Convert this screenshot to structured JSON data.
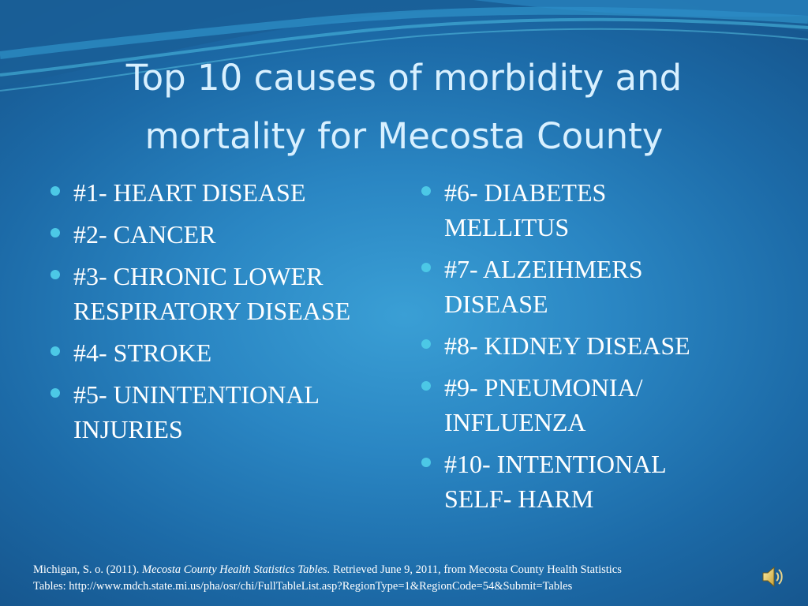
{
  "slide": {
    "title_line1": "Top 10 causes of morbidity and",
    "title_line2": "mortality for Mecosta County",
    "left_items": [
      {
        "line1": "#1- HEART DISEASE",
        "line2": ""
      },
      {
        "line1": "#2- CANCER",
        "line2": ""
      },
      {
        "line1": "#3- CHRONIC LOWER",
        "line2": "RESPIRATORY DISEASE"
      },
      {
        "line1": "#4- STROKE",
        "line2": ""
      },
      {
        "line1": "#5- UNINTENTIONAL",
        "line2": "INJURIES"
      }
    ],
    "right_items": [
      {
        "line1": "#6- DIABETES",
        "line2": "MELLITUS"
      },
      {
        "line1": "#7- ALZEIHMERS",
        "line2": "DISEASE"
      },
      {
        "line1": "#8- KIDNEY DISEASE",
        "line2": ""
      },
      {
        "line1": "#9- PNEUMONIA/",
        "line2": "INFLUENZA"
      },
      {
        "line1": "#10- INTENTIONAL",
        "line2": "SELF- HARM"
      }
    ],
    "citation": {
      "author": "Michigan, S. o. (2011). ",
      "work_title": "Mecosta County Health Statistics Tables.",
      "retrieved": " Retrieved June 9, 2011, from Mecosta County Health Statistics",
      "line2": "Tables: http://www.mdch.state.mi.us/pha/osr/chi/FullTableList.asp?RegionType=1&RegionCode=54&Submit=Tables"
    },
    "sound_icon": "speaker-icon"
  },
  "colors": {
    "title": "#d8f0ff",
    "body_text": "#ffffff",
    "bullet": "#4cc8e6",
    "background_center": "#3a9fd5",
    "background_edge": "#16568e"
  }
}
